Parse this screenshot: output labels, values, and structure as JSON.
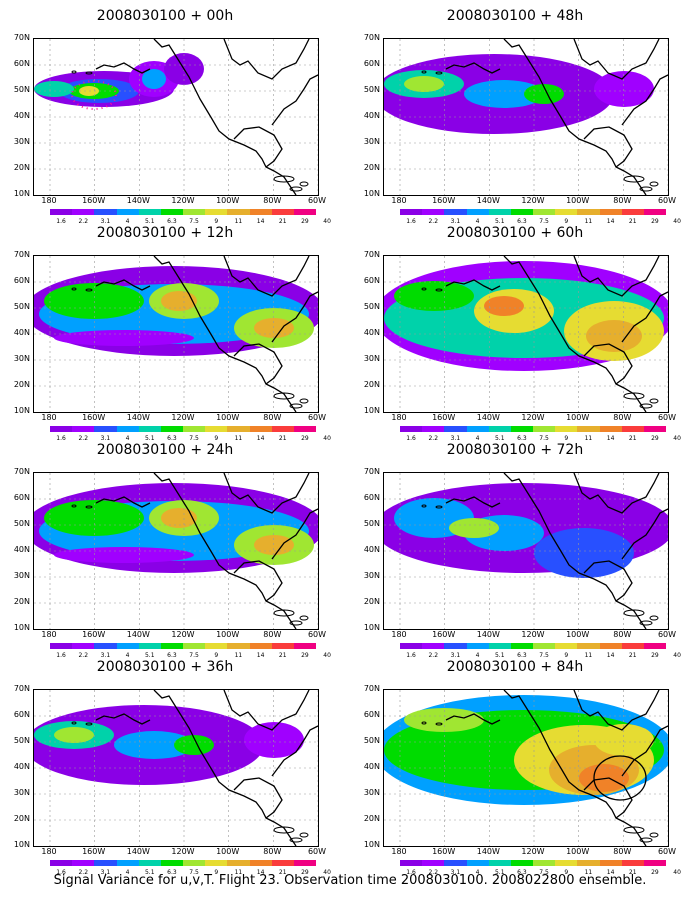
{
  "footer": "Signal Variance for u,v,T. Flight 23. Observation time 2008030100. 2008022800 ensemble.",
  "lat_labels": [
    "70N",
    "60N",
    "50N",
    "40N",
    "30N",
    "20N",
    "10N"
  ],
  "lon_labels": [
    "180",
    "160W",
    "140W",
    "120W",
    "100W",
    "80W",
    "60W"
  ],
  "legend_values": [
    "1.6",
    "2.2",
    "3.1",
    "4",
    "5.1",
    "6.3",
    "7.5",
    "9",
    "11",
    "14",
    "21",
    "29",
    "40"
  ],
  "legend_colors": [
    "#8a00e6",
    "#a000ff",
    "#2850ff",
    "#00a0ff",
    "#00d2aa",
    "#00dc00",
    "#a0e632",
    "#e6dc32",
    "#e6af2d",
    "#f08228",
    "#fa3c3c",
    "#f00082"
  ],
  "panels": [
    {
      "title": "2008030100 + 00h",
      "level": 0
    },
    {
      "title": "2008030100 + 48h",
      "level": 2
    },
    {
      "title": "2008030100 + 12h",
      "level": 1
    },
    {
      "title": "2008030100 + 60h",
      "level": 3
    },
    {
      "title": "2008030100 + 24h",
      "level": 1
    },
    {
      "title": "2008030100 + 72h",
      "level": 4
    },
    {
      "title": "2008030100 + 36h",
      "level": 2
    },
    {
      "title": "2008030100 + 84h",
      "level": 5
    }
  ]
}
